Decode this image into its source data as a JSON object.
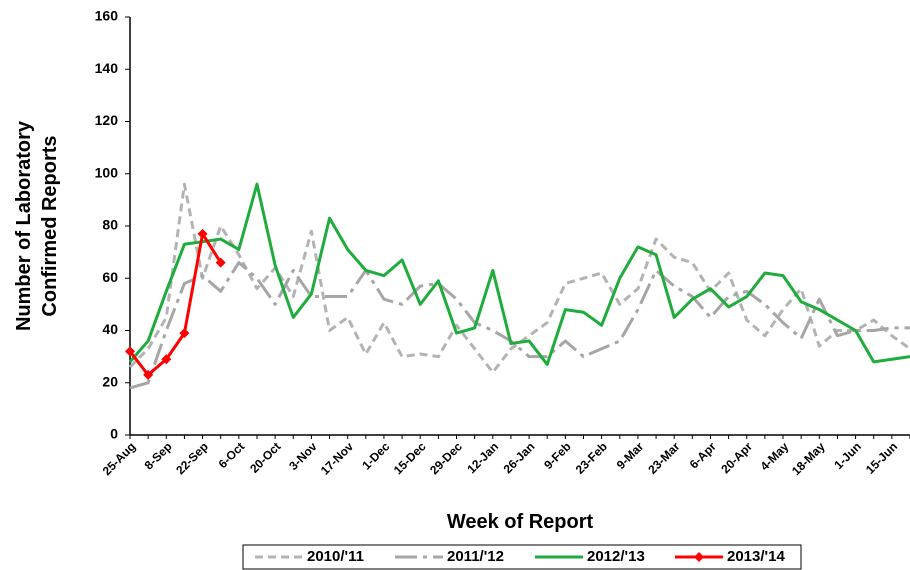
{
  "chart_data": {
    "type": "line",
    "xlabel": "Week of Report",
    "ylabel": [
      "Number of Laboratory",
      "Confirmed Reports"
    ],
    "categories": [
      "25-Aug",
      null,
      "8-Sep",
      null,
      "22-Sep",
      null,
      "6-Oct",
      null,
      "20-Oct",
      null,
      "3-Nov",
      null,
      "17-Nov",
      null,
      "1-Dec",
      null,
      "15-Dec",
      null,
      "29-Dec",
      null,
      "12-Jan",
      null,
      "26-Jan",
      null,
      "9-Feb",
      null,
      "23-Feb",
      null,
      "9-Mar",
      null,
      "23-Mar",
      null,
      "6-Apr",
      null,
      "20-Apr",
      null,
      "4-May",
      null,
      "18-May",
      null,
      "1-Jun",
      null,
      "15-Jun",
      null
    ],
    "ylim": [
      0,
      160
    ],
    "yticks": [
      0,
      20,
      40,
      60,
      80,
      100,
      120,
      140,
      160
    ],
    "series": [
      {
        "name": "2010/'11",
        "color": "#b3b3b3",
        "dash": "8,5",
        "values": [
          26,
          33,
          45,
          96,
          60,
          80,
          69,
          56,
          64,
          53,
          78,
          40,
          45,
          31,
          43,
          30,
          31,
          30,
          42,
          33,
          24,
          33,
          38,
          43,
          58,
          60,
          62,
          50,
          56,
          75,
          68,
          66,
          55,
          62,
          44,
          38,
          48,
          56,
          34,
          40,
          40,
          44,
          38,
          33
        ]
      },
      {
        "name": "2011/'12",
        "color": "#a6a6a6",
        "dash": "22,6,4,6",
        "values": [
          18,
          20,
          40,
          58,
          61,
          55,
          66,
          60,
          50,
          63,
          53,
          53,
          53,
          63,
          52,
          50,
          57,
          58,
          52,
          43,
          40,
          36,
          30,
          30,
          36,
          30,
          33,
          36,
          48,
          63,
          57,
          53,
          45,
          53,
          55,
          50,
          43,
          37,
          52,
          38,
          40,
          40,
          41,
          41
        ]
      },
      {
        "name": "2012/'13",
        "color": "#1fac3c",
        "values": [
          28,
          36,
          55,
          73,
          74,
          75,
          71,
          96,
          65,
          45,
          54,
          83,
          71,
          63,
          61,
          67,
          50,
          59,
          39,
          41,
          63,
          35,
          36,
          27,
          48,
          47,
          42,
          60,
          72,
          69,
          45,
          52,
          56,
          49,
          53,
          62,
          61,
          51,
          48,
          44,
          40,
          28,
          29,
          30
        ]
      },
      {
        "name": "2013/'14",
        "color": "#ff0000",
        "marker": "diamond",
        "values": [
          32,
          23,
          29,
          39,
          77,
          66,
          null,
          null,
          null,
          null,
          null,
          null,
          null,
          null,
          null,
          null,
          null,
          null,
          null,
          null,
          null,
          null,
          null,
          null,
          null,
          null,
          null,
          null,
          null,
          null,
          null,
          null,
          null,
          null,
          null,
          null,
          null,
          null,
          null,
          null,
          null,
          null,
          null,
          null
        ]
      }
    ]
  }
}
